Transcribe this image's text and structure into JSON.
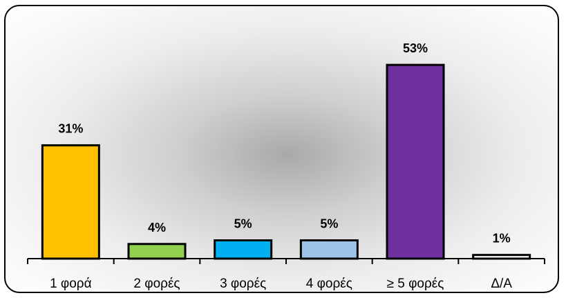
{
  "chart_data": {
    "type": "bar",
    "categories": [
      "1 φορά",
      "2 φορές",
      "3 φορές",
      "4 φορές",
      "≥ 5 φορές",
      "Δ/Α"
    ],
    "values": [
      31,
      4,
      5,
      5,
      53,
      1
    ],
    "data_labels": [
      "31%",
      "4%",
      "5%",
      "5%",
      "53%",
      "1%"
    ],
    "colors": [
      "#FFC000",
      "#92D050",
      "#00B0F0",
      "#9DC3E6",
      "#7030A0",
      "#FFFFFF"
    ],
    "title": "",
    "xlabel": "",
    "ylabel": "",
    "ylim": [
      0,
      60
    ],
    "grid": false,
    "legend": "none"
  }
}
